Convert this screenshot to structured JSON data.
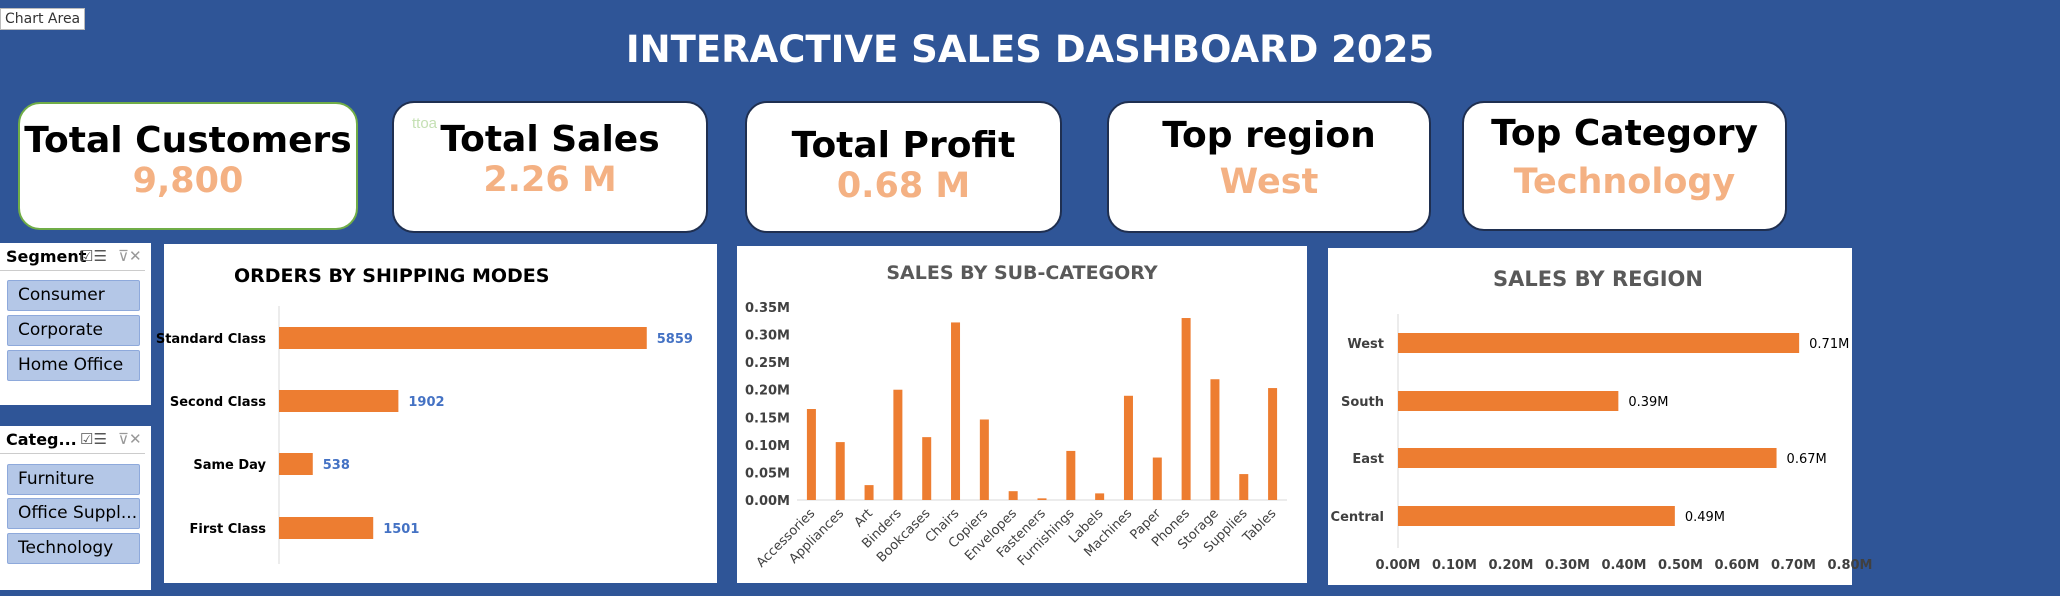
{
  "chart_area_label": "Chart Area",
  "title": "INTERACTIVE SALES DASHBOARD 2025",
  "kpis": {
    "customers": {
      "label": "Total Customers",
      "value": "9,800"
    },
    "sales": {
      "label": "Total Sales",
      "value": "2.26 M"
    },
    "profit": {
      "label": "Total Profit",
      "value": "0.68 M"
    },
    "region": {
      "label": "Top region",
      "value": "West"
    },
    "category": {
      "label": "Top Category",
      "value": "Technology"
    }
  },
  "ghost_text": "ttoa",
  "slicers": {
    "segment": {
      "title": "Segment",
      "items": [
        "Consumer",
        "Corporate",
        "Home Office"
      ]
    },
    "category": {
      "title": "Categ...",
      "items": [
        "Furniture",
        "Office Suppl...",
        "Technology"
      ]
    }
  },
  "icons": {
    "multi_select": "multi-select-icon",
    "clear_filter": "clear-filter-icon"
  },
  "colors": {
    "background": "#2f5597",
    "bar": "#ed7d31",
    "kpi_value": "#f4b183",
    "data_label_blue": "#4472c4",
    "slicer_button": "#b4c7e7"
  },
  "chart_data": [
    {
      "type": "bar",
      "orientation": "horizontal",
      "title": "ORDERS BY SHIPPING MODES",
      "categories": [
        "Standard Class",
        "Second Class",
        "Same Day",
        "First Class"
      ],
      "values": [
        5859,
        1902,
        538,
        1501
      ],
      "data_labels": [
        "5859",
        "1902",
        "538",
        "1501"
      ],
      "xlim": [
        0,
        6500
      ],
      "grid": false,
      "legend": "none"
    },
    {
      "type": "bar",
      "orientation": "vertical",
      "title": "SALES BY SUB-CATEGORY",
      "categories": [
        "Accessories",
        "Appliances",
        "Art",
        "Binders",
        "Bookcases",
        "Chairs",
        "Copiers",
        "Envelopes",
        "Fasteners",
        "Furnishings",
        "Labels",
        "Machines",
        "Paper",
        "Phones",
        "Storage",
        "Supplies",
        "Tables"
      ],
      "values": [
        0.165,
        0.105,
        0.027,
        0.2,
        0.114,
        0.322,
        0.146,
        0.016,
        0.003,
        0.089,
        0.012,
        0.189,
        0.077,
        0.33,
        0.219,
        0.047,
        0.203
      ],
      "ylim": [
        0,
        0.35
      ],
      "yticks": [
        "0.00M",
        "0.05M",
        "0.10M",
        "0.15M",
        "0.20M",
        "0.25M",
        "0.30M",
        "0.35M"
      ],
      "grid": false,
      "legend": "none"
    },
    {
      "type": "bar",
      "orientation": "horizontal",
      "title": "SALES BY REGION",
      "categories": [
        "West",
        "South",
        "East",
        "Central"
      ],
      "values": [
        0.71,
        0.39,
        0.67,
        0.49
      ],
      "data_labels": [
        "0.71M",
        "0.39M",
        "0.67M",
        "0.49M"
      ],
      "xlim": [
        0,
        0.8
      ],
      "xticks": [
        "0.00M",
        "0.10M",
        "0.20M",
        "0.30M",
        "0.40M",
        "0.50M",
        "0.60M",
        "0.70M",
        "0.80M"
      ],
      "grid": false,
      "legend": "none"
    }
  ]
}
